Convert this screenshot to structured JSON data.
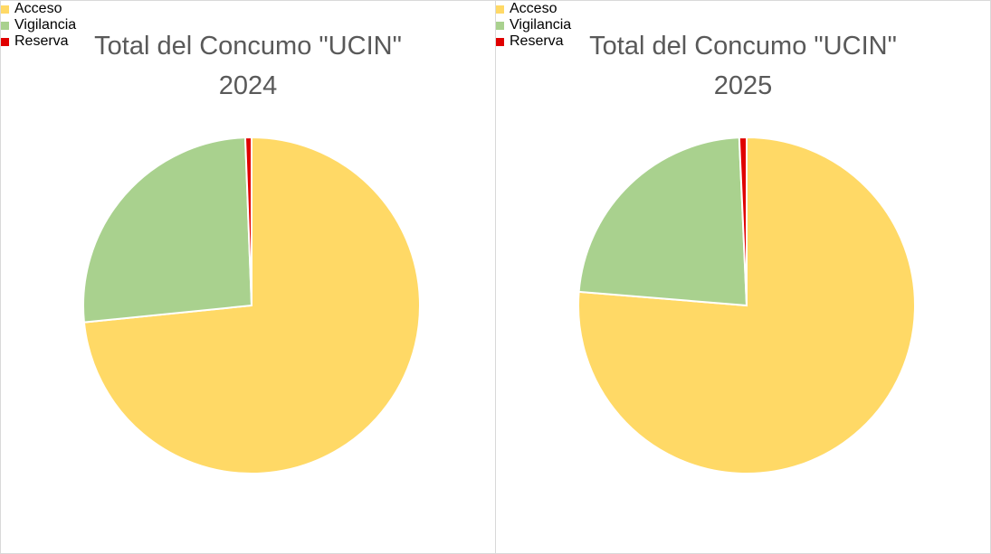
{
  "chart_data": [
    {
      "type": "pie",
      "title": "Total del Concumo \"UCIN\" 2024",
      "categories": [
        "Acceso",
        "Vigilancia",
        "Reserva"
      ],
      "values": [
        73.4,
        26.0,
        0.6
      ],
      "colors": [
        "#FFD966",
        "#A9D18E",
        "#E00000"
      ],
      "legend": "bottom"
    },
    {
      "type": "pie",
      "title": "Total del Concumo \"UCIN\" 2025",
      "categories": [
        "Acceso",
        "Vigilancia",
        "Reserva"
      ],
      "values": [
        76.3,
        23.0,
        0.7
      ],
      "colors": [
        "#FFD966",
        "#A9D18E",
        "#E00000"
      ],
      "legend": "bottom"
    }
  ]
}
